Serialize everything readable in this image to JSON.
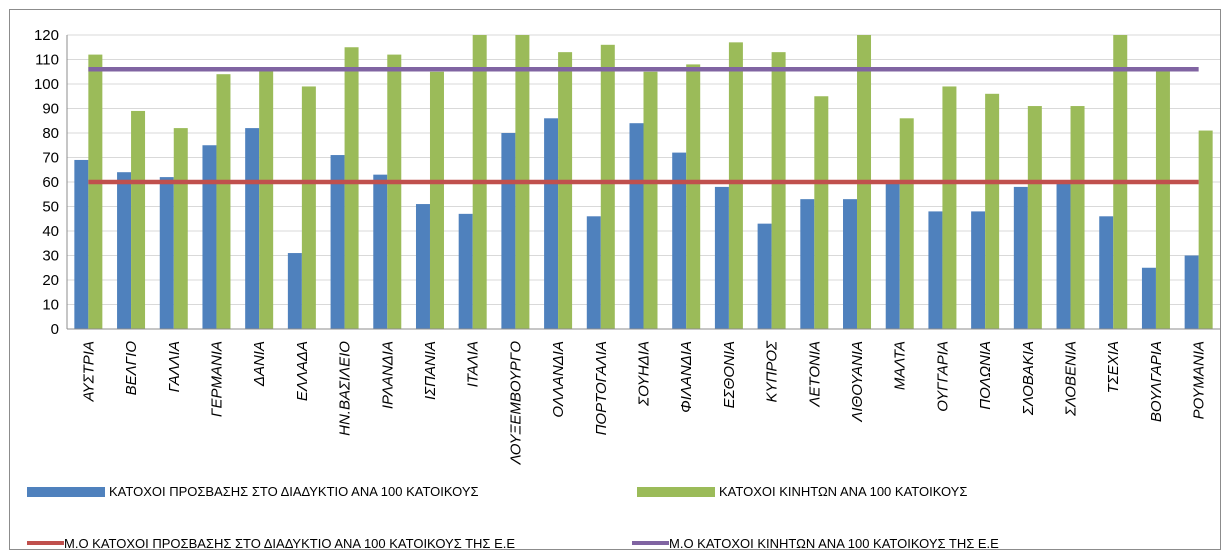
{
  "colors": {
    "bar_internet": "#4f81bd",
    "bar_mobile": "#9bbb59",
    "avg_internet": "#c0504d",
    "avg_mobile": "#8064a2",
    "grid": "#d9d9d9",
    "axis": "#8c8c8c"
  },
  "chart_data": {
    "type": "bar",
    "ylim": [
      0,
      120
    ],
    "yticks": [
      0,
      10,
      20,
      30,
      40,
      50,
      60,
      70,
      80,
      90,
      100,
      110,
      120
    ],
    "grid": true,
    "legend_position": "bottom",
    "categories": [
      "ΑΥΣΤΡΙΑ",
      "ΒΕΛΓΙΟ",
      "ΓΑΛΛΙΑ",
      "ΓΕΡΜΑΝΙΑ",
      "ΔΑΝΙΑ",
      "ΕΛΛΑΔΑ",
      "ΗΝ.ΒΑΣΙΛΕΙΟ",
      "ΙΡΛΑΝΔΙΑ",
      "ΙΣΠΑΝΙΑ",
      "ΙΤΑΛΙΑ",
      "ΛΟΥΞΕΜΒΟΥΡΓΟ",
      "ΟΛΛΑΝΔΙΑ",
      "ΠΟΡΤΟΓΑΛΙΑ",
      "ΣΟΥΗΔΙΑ",
      "ΦΙΛΑΝΔΙΑ",
      "ΕΣΘΟΝΙΑ",
      "ΚΥΠΡΟΣ",
      "ΛΕΤΟΝΙΑ",
      "ΛΙΘΟΥΑΝΙΑ",
      "ΜΑΛΤΑ",
      "ΟΥΓΓΑΡΙΑ",
      "ΠΟΛΩΝΙΑ",
      "ΣΛΟΒΑΚΙΑ",
      "ΣΛΟΒΕΝΙΑ",
      "ΤΣΕΧΙΑ",
      "ΒΟΥΛΓΑΡΙΑ",
      "ΡΟΥΜΑΝΙΑ"
    ],
    "series": [
      {
        "name": "ΚΑΤΟΧΟΙ ΠΡΟΣΒΑΣΗΣ ΣΤΟ ΔΙΑΔΥΚΤΙΟ ΑΝΑ 100 ΚΑΤΟΙΚΟΥΣ",
        "kind": "bar",
        "values": [
          69,
          64,
          62,
          75,
          82,
          31,
          71,
          63,
          51,
          47,
          80,
          86,
          46,
          84,
          72,
          58,
          43,
          53,
          53,
          60,
          48,
          48,
          58,
          60,
          46,
          25,
          30
        ]
      },
      {
        "name": "ΚΑΤΟΧΟΙ ΚΙΝΗΤΩΝ ΑΝΑ 100 ΚΑΤΟΙΚΟΥΣ",
        "kind": "bar",
        "values": [
          112,
          89,
          82,
          104,
          106,
          99,
          115,
          112,
          105,
          121,
          122,
          113,
          116,
          105,
          108,
          117,
          113,
          95,
          121,
          86,
          99,
          96,
          91,
          91,
          125,
          106,
          81
        ]
      },
      {
        "name": "Μ.Ο ΚΑΤΟΧΟΙ ΠΡΟΣΒΑΣΗΣ ΣΤΟ ΔΙΑΔΥΚΤΙΟ ΑΝΑ 100 ΚΑΤΟΙΚΟΥΣ ΤΗΣ Ε.Ε",
        "kind": "line",
        "value": 60
      },
      {
        "name": "Μ.Ο ΚΑΤΟΧΟΙ ΚΙΝΗΤΩΝ ΑΝΑ 100 ΚΑΤΟΙΚΟΥΣ ΤΗΣ Ε.Ε",
        "kind": "line",
        "value": 106
      }
    ]
  }
}
